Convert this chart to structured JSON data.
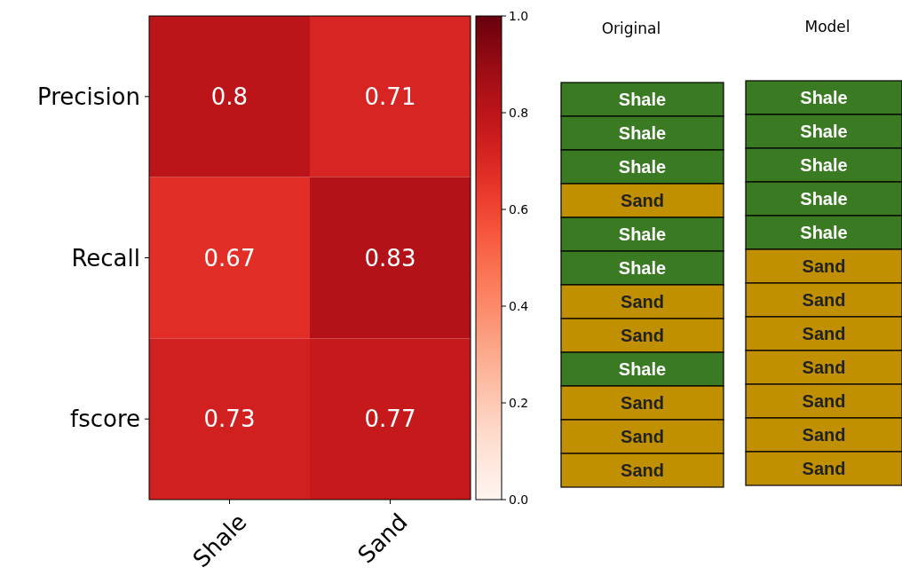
{
  "chart_data": [
    {
      "type": "heatmap",
      "categories": [
        "Shale",
        "Sand"
      ],
      "y_categories": [
        "Precision",
        "Recall",
        "fscore"
      ],
      "cells": [
        [
          0.8,
          0.71
        ],
        [
          0.67,
          0.83
        ],
        [
          0.73,
          0.77
        ]
      ],
      "clim": [
        0,
        1
      ],
      "cticks": [
        {
          "value": 0,
          "label": "0.0"
        },
        {
          "value": 0.2,
          "label": "0.2"
        },
        {
          "value": 0.4,
          "label": "0.4"
        },
        {
          "value": 0.6,
          "label": "0.6"
        },
        {
          "value": 0.8,
          "label": "0.8"
        },
        {
          "value": 1,
          "label": "1.0"
        }
      ],
      "data_labels": true
    },
    {
      "type": "other",
      "title": "Original",
      "categories": [
        "Shale",
        "Shale",
        "Shale",
        "Sand",
        "Shale",
        "Shale",
        "Sand",
        "Sand",
        "Shale",
        "Sand",
        "Sand",
        "Sand"
      ],
      "colors": [
        "#3a7a22",
        "#3a7a22",
        "#3a7a22",
        "#c09000",
        "#3a7a22",
        "#3a7a22",
        "#c09000",
        "#c09000",
        "#3a7a22",
        "#c09000",
        "#c09000",
        "#c09000"
      ]
    },
    {
      "type": "other",
      "title": "Model",
      "categories": [
        "Shale",
        "Shale",
        "Shale",
        "Shale",
        "Shale",
        "Sand",
        "Sand",
        "Sand",
        "Sand",
        "Sand",
        "Sand",
        "Sand"
      ],
      "colors": [
        "#3a7a22",
        "#3a7a22",
        "#3a7a22",
        "#3a7a22",
        "#3a7a22",
        "#c09000",
        "#c09000",
        "#c09000",
        "#c09000",
        "#c09000",
        "#c09000",
        "#c09000"
      ]
    }
  ]
}
